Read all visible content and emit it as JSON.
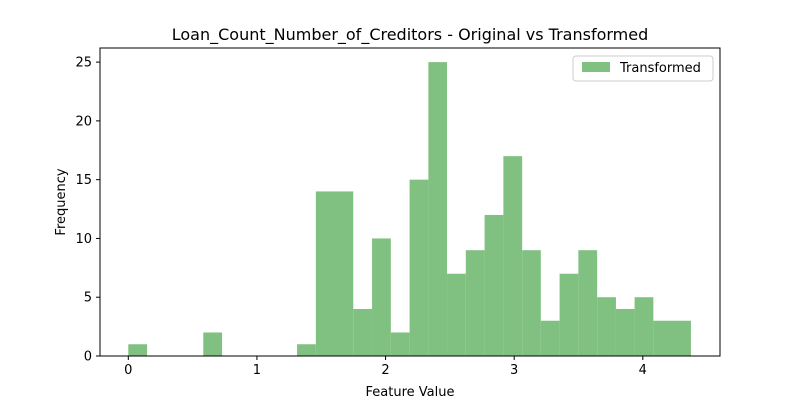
{
  "chart_data": {
    "type": "bar",
    "title": "Loan_Count_Number_of_Creditors - Original vs Transformed",
    "xlabel": "Feature Value",
    "ylabel": "Frequency",
    "xlim": [
      -0.22,
      4.6
    ],
    "ylim": [
      0,
      26.2
    ],
    "xticks": [
      0,
      1,
      2,
      3,
      4
    ],
    "yticks": [
      0,
      5,
      10,
      15,
      20,
      25
    ],
    "legend_position": "top-right",
    "grid": false,
    "color": "#80c080",
    "series": [
      {
        "name": "Transformed",
        "bins": [
          {
            "x0": 0.0,
            "x1": 0.146,
            "count": 1
          },
          {
            "x0": 0.583,
            "x1": 0.729,
            "count": 2
          },
          {
            "x0": 1.312,
            "x1": 1.458,
            "count": 1
          },
          {
            "x0": 1.458,
            "x1": 1.749,
            "count": 14
          },
          {
            "x0": 1.749,
            "x1": 1.895,
            "count": 4
          },
          {
            "x0": 1.895,
            "x1": 2.041,
            "count": 10
          },
          {
            "x0": 2.041,
            "x1": 2.187,
            "count": 2
          },
          {
            "x0": 2.187,
            "x1": 2.333,
            "count": 15
          },
          {
            "x0": 2.333,
            "x1": 2.478,
            "count": 25
          },
          {
            "x0": 2.478,
            "x1": 2.624,
            "count": 7
          },
          {
            "x0": 2.624,
            "x1": 2.77,
            "count": 9
          },
          {
            "x0": 2.77,
            "x1": 2.916,
            "count": 12
          },
          {
            "x0": 2.916,
            "x1": 3.062,
            "count": 17
          },
          {
            "x0": 3.062,
            "x1": 3.207,
            "count": 9
          },
          {
            "x0": 3.207,
            "x1": 3.353,
            "count": 3
          },
          {
            "x0": 3.353,
            "x1": 3.499,
            "count": 7
          },
          {
            "x0": 3.499,
            "x1": 3.645,
            "count": 9
          },
          {
            "x0": 3.645,
            "x1": 3.791,
            "count": 5
          },
          {
            "x0": 3.791,
            "x1": 3.936,
            "count": 4
          },
          {
            "x0": 3.936,
            "x1": 4.082,
            "count": 5
          },
          {
            "x0": 4.082,
            "x1": 4.374,
            "count": 3
          }
        ]
      }
    ]
  }
}
